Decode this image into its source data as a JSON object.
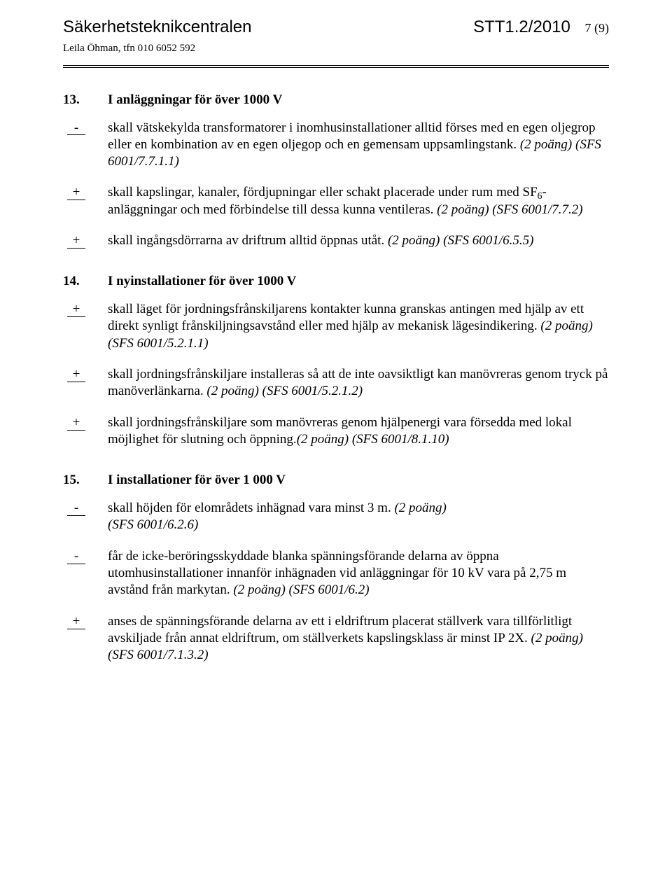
{
  "header": {
    "left": "Säkerhetsteknikcentralen",
    "right": "STT1.2/2010",
    "pageno": "7 (9)",
    "sub": "Leila Öhman, tfn 010 6052 592"
  },
  "sections": [
    {
      "num": "13.",
      "title": "I anläggningar för över 1000 V",
      "items": [
        {
          "mark": "-",
          "text_html": "skall vätskekylda transformatorer i inomhusinstallationer alltid förses med en egen oljegrop eller en kombination av en egen oljegop och en gemensam uppsamlingstank. <span class=\"ital\">(2 poäng) (SFS 6001/7.7.1.1)</span>"
        },
        {
          "mark": "+",
          "text_html": "skall kapslingar, kanaler, fördjupningar eller schakt placerade under rum med SF<sub>6</sub>-anläggningar och med förbindelse till dessa kunna ventileras. <span class=\"ital\">(2 poäng) (SFS 6001/7.7.2)</span>"
        },
        {
          "mark": "+",
          "text_html": "skall ingångsdörrarna av driftrum alltid öppnas utåt. <span class=\"ital\">(2 poäng) (SFS 6001/6.5.5)</span>"
        }
      ]
    },
    {
      "num": "14.",
      "title": "I nyinstallationer för över 1000 V",
      "items": [
        {
          "mark": "+",
          "text_html": "skall läget för jordningsfrånskiljarens kontakter kunna granskas antingen med hjälp av ett direkt synligt frånskiljningsavstånd eller med hjälp av mekanisk lägesindikering. <span class=\"ital\">(2 poäng) (SFS 6001/5.2.1.1)</span>"
        },
        {
          "mark": "+",
          "text_html": "skall jordningsfrånskiljare installeras så att de inte oavsiktligt kan manövreras genom tryck på manöverlänkarna. <span class=\"ital\">(2 poäng) (SFS 6001/5.2.1.2)</span>"
        },
        {
          "mark": "+",
          "text_html": "skall jordningsfrånskiljare som manövreras genom hjälpenergi vara försedda med lokal möjlighet för slutning och öppning.<span class=\"ital\">(2 poäng)  (SFS 6001/8.1.10)</span>"
        }
      ]
    },
    {
      "num": "15.",
      "title": "I installationer för över 1 000 V",
      "items": [
        {
          "mark": "-",
          "text_html": "skall höjden för elområdets inhägnad vara minst 3 m. <span class=\"ital\">(2 poäng)<br>(SFS 6001/6.2.6)</span>"
        },
        {
          "mark": "-",
          "text_html": "får de icke-beröringsskyddade blanka spänningsförande delarna av öppna utomhusinstallationer innanför inhägnaden vid anläggningar för 10 kV vara på 2,75 m avstånd från markytan. <span class=\"ital\">(2 poäng) (SFS 6001/6.2)</span>"
        },
        {
          "mark": "+",
          "text_html": "anses de spänningsförande delarna av ett i eldriftrum placerat ställverk vara tillförlitligt avskiljade från annat eldriftrum, om ställverkets kapslingsklass är minst IP 2X. <span class=\"ital\">(2 poäng) (SFS 6001/7.1.3.2)</span>"
        }
      ]
    }
  ]
}
